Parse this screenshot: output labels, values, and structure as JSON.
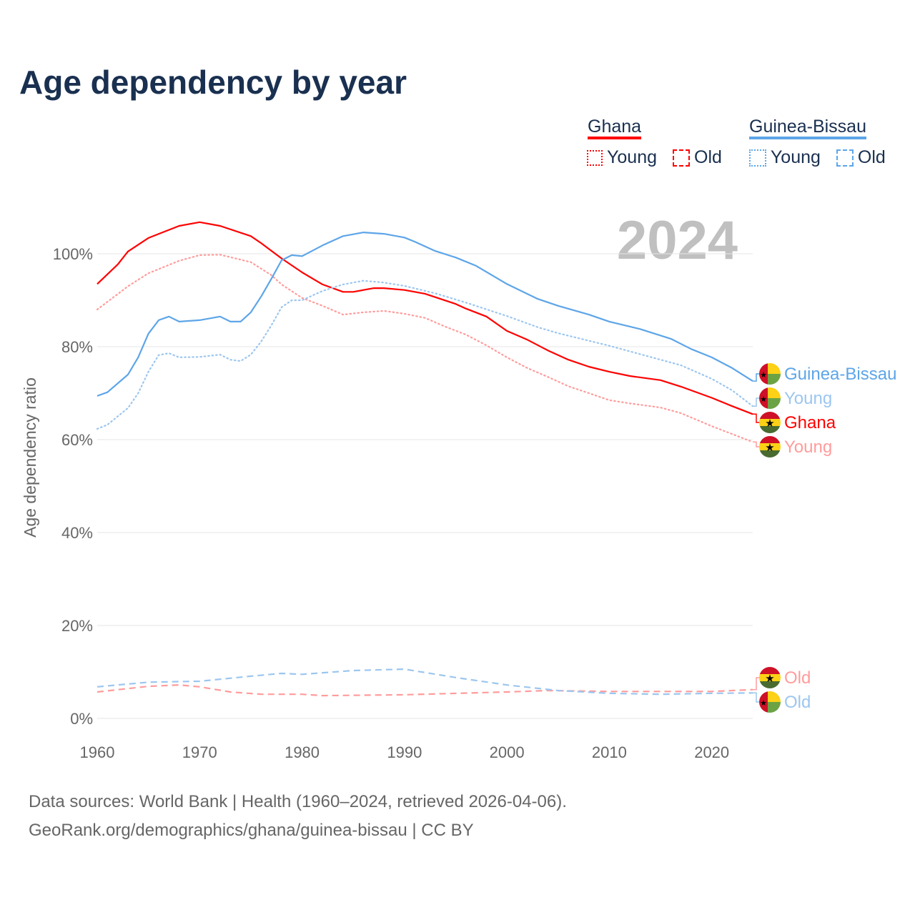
{
  "title": "Age dependency by year",
  "year_watermark": "2024",
  "legend": {
    "groups": [
      {
        "name": "Ghana",
        "color": "#ff0000",
        "items": [
          "Young",
          "Old"
        ]
      },
      {
        "name": "Guinea-Bissau",
        "color": "#5da5e8",
        "items": [
          "Young",
          "Old"
        ]
      }
    ]
  },
  "end_labels": [
    "Guinea-Bissau",
    "Young",
    "Ghana",
    "Young",
    "Old",
    "Old"
  ],
  "source": [
    "Data sources: World Bank | Health (1960–2024, retrieved 2026-04-06).",
    "GeoRank.org/demographics/ghana/guinea-bissau | CC BY"
  ],
  "chart_data": {
    "type": "line",
    "title": "Age dependency by year",
    "xlabel": "",
    "ylabel": "Age dependency ratio",
    "xlim": [
      1960,
      2024
    ],
    "ylim": [
      0,
      110
    ],
    "xticks": [
      "1960",
      "1970",
      "1980",
      "1990",
      "2000",
      "2010",
      "2020"
    ],
    "yticks": [
      "0%",
      "20%",
      "40%",
      "60%",
      "80%",
      "100%"
    ],
    "series": [
      {
        "name": "Ghana",
        "color": "#ff0000",
        "style": "solid",
        "points": [
          [
            1960,
            93.5
          ],
          [
            1962,
            97.7
          ],
          [
            1963,
            100.5
          ],
          [
            1965,
            103.4
          ],
          [
            1968,
            106
          ],
          [
            1970,
            106.8
          ],
          [
            1972,
            106
          ],
          [
            1975,
            103.8
          ],
          [
            1976,
            102.3
          ],
          [
            1978,
            99
          ],
          [
            1980,
            96
          ],
          [
            1982,
            93.4
          ],
          [
            1984,
            91.8
          ],
          [
            1985,
            91.8
          ],
          [
            1987,
            92.6
          ],
          [
            1988,
            92.6
          ],
          [
            1990,
            92.2
          ],
          [
            1992,
            91.4
          ],
          [
            1995,
            89.2
          ],
          [
            1996,
            88.2
          ],
          [
            1998,
            86.5
          ],
          [
            2000,
            83.4
          ],
          [
            2002,
            81.5
          ],
          [
            2004,
            79.2
          ],
          [
            2006,
            77.2
          ],
          [
            2008,
            75.7
          ],
          [
            2010,
            74.6
          ],
          [
            2012,
            73.7
          ],
          [
            2015,
            72.8
          ],
          [
            2017,
            71.4
          ],
          [
            2020,
            69
          ],
          [
            2022,
            67.2
          ],
          [
            2024,
            65.5
          ]
        ]
      },
      {
        "name": "Ghana Young",
        "color": "#ff9c9c",
        "style": "dotted",
        "points": [
          [
            1960,
            88
          ],
          [
            1963,
            93
          ],
          [
            1965,
            95.8
          ],
          [
            1968,
            98.5
          ],
          [
            1970,
            99.7
          ],
          [
            1972,
            99.8
          ],
          [
            1975,
            98.2
          ],
          [
            1977,
            95.4
          ],
          [
            1978,
            93.4
          ],
          [
            1980,
            90.5
          ],
          [
            1982,
            88.8
          ],
          [
            1984,
            86.9
          ],
          [
            1986,
            87.4
          ],
          [
            1988,
            87.7
          ],
          [
            1990,
            87.1
          ],
          [
            1992,
            86.2
          ],
          [
            1994,
            84.3
          ],
          [
            1996,
            82.6
          ],
          [
            1998,
            80.3
          ],
          [
            2000,
            77.7
          ],
          [
            2002,
            75.4
          ],
          [
            2004,
            73.5
          ],
          [
            2006,
            71.5
          ],
          [
            2008,
            70
          ],
          [
            2010,
            68.5
          ],
          [
            2012,
            67.8
          ],
          [
            2015,
            66.9
          ],
          [
            2017,
            65.7
          ],
          [
            2020,
            62.9
          ],
          [
            2022,
            61.2
          ],
          [
            2024,
            59.5
          ]
        ]
      },
      {
        "name": "Ghana Old",
        "color": "#ff9c9c",
        "style": "dashed",
        "points": [
          [
            1960,
            5.7
          ],
          [
            1965,
            6.9
          ],
          [
            1968,
            7.2
          ],
          [
            1970,
            6.8
          ],
          [
            1973,
            5.7
          ],
          [
            1976,
            5.2
          ],
          [
            1980,
            5.2
          ],
          [
            1982,
            4.9
          ],
          [
            1990,
            5.1
          ],
          [
            2000,
            5.7
          ],
          [
            2004,
            6
          ],
          [
            2010,
            5.8
          ],
          [
            2020,
            5.8
          ],
          [
            2024,
            6.2
          ]
        ]
      },
      {
        "name": "Guinea-Bissau",
        "color": "#5da5e8",
        "style": "solid",
        "points": [
          [
            1960,
            69.4
          ],
          [
            1961,
            70.2
          ],
          [
            1963,
            74
          ],
          [
            1964,
            77.7
          ],
          [
            1965,
            82.8
          ],
          [
            1966,
            85.7
          ],
          [
            1967,
            86.5
          ],
          [
            1968,
            85.4
          ],
          [
            1970,
            85.7
          ],
          [
            1972,
            86.5
          ],
          [
            1973,
            85.4
          ],
          [
            1974,
            85.4
          ],
          [
            1975,
            87.4
          ],
          [
            1976,
            90.8
          ],
          [
            1977,
            94.6
          ],
          [
            1978,
            98.6
          ],
          [
            1979,
            99.7
          ],
          [
            1980,
            99.5
          ],
          [
            1982,
            101.8
          ],
          [
            1984,
            103.8
          ],
          [
            1986,
            104.6
          ],
          [
            1988,
            104.3
          ],
          [
            1990,
            103.5
          ],
          [
            1991,
            102.6
          ],
          [
            1993,
            100.6
          ],
          [
            1995,
            99.2
          ],
          [
            1997,
            97.4
          ],
          [
            2000,
            93.5
          ],
          [
            2003,
            90.3
          ],
          [
            2005,
            88.8
          ],
          [
            2008,
            86.9
          ],
          [
            2010,
            85.4
          ],
          [
            2013,
            83.8
          ],
          [
            2016,
            81.7
          ],
          [
            2018,
            79.5
          ],
          [
            2020,
            77.7
          ],
          [
            2022,
            75.4
          ],
          [
            2024,
            72.6
          ]
        ]
      },
      {
        "name": "Guinea-Bissau Young",
        "color": "#9cc6f0",
        "style": "dotted",
        "points": [
          [
            1960,
            62.3
          ],
          [
            1961,
            63.2
          ],
          [
            1963,
            66.8
          ],
          [
            1964,
            70
          ],
          [
            1965,
            74.6
          ],
          [
            1966,
            78.2
          ],
          [
            1967,
            78.6
          ],
          [
            1968,
            77.7
          ],
          [
            1970,
            77.8
          ],
          [
            1972,
            78.3
          ],
          [
            1973,
            77.2
          ],
          [
            1974,
            76.9
          ],
          [
            1975,
            78.3
          ],
          [
            1976,
            81.1
          ],
          [
            1977,
            84.6
          ],
          [
            1978,
            88.5
          ],
          [
            1979,
            90
          ],
          [
            1980,
            90
          ],
          [
            1982,
            92
          ],
          [
            1984,
            93.4
          ],
          [
            1986,
            94.2
          ],
          [
            1988,
            93.8
          ],
          [
            1990,
            93.1
          ],
          [
            1993,
            91.5
          ],
          [
            1996,
            89.5
          ],
          [
            2000,
            86.6
          ],
          [
            2003,
            84.2
          ],
          [
            2005,
            82.9
          ],
          [
            2010,
            80.2
          ],
          [
            2015,
            77.2
          ],
          [
            2017,
            76
          ],
          [
            2020,
            73.1
          ],
          [
            2022,
            70.6
          ],
          [
            2024,
            67.2
          ]
        ]
      },
      {
        "name": "Guinea-Bissau Old",
        "color": "#9cc6f0",
        "style": "dashed",
        "points": [
          [
            1960,
            6.8
          ],
          [
            1965,
            7.8
          ],
          [
            1970,
            8
          ],
          [
            1975,
            9.1
          ],
          [
            1978,
            9.7
          ],
          [
            1980,
            9.5
          ],
          [
            1985,
            10.3
          ],
          [
            1990,
            10.6
          ],
          [
            1995,
            8.8
          ],
          [
            2000,
            7.2
          ],
          [
            2005,
            6
          ],
          [
            2010,
            5.4
          ],
          [
            2015,
            5.2
          ],
          [
            2020,
            5.4
          ],
          [
            2024,
            5.5
          ]
        ]
      }
    ]
  }
}
